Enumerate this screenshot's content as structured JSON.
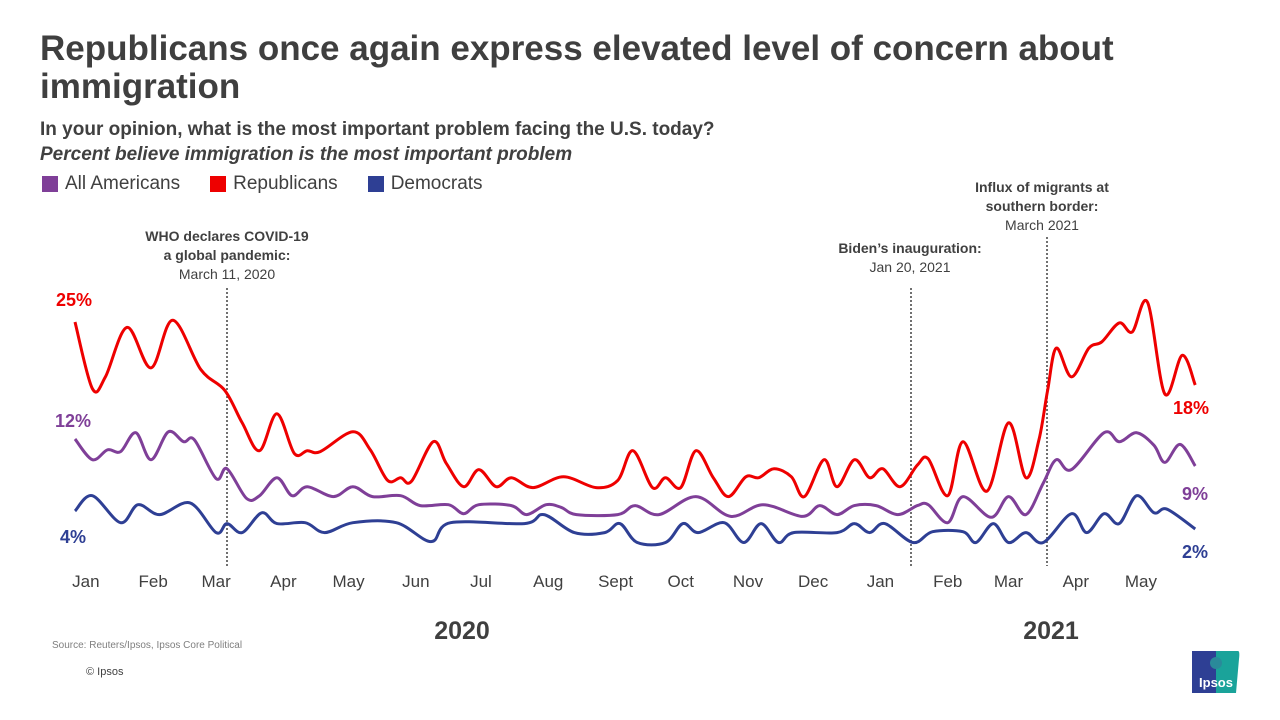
{
  "header": {
    "title": "Republicans once again express elevated level of concern about immigration",
    "subtitle": "In your opinion, what is the most important problem facing the U.S. today?",
    "subtitle2": "Percent believe immigration is the most important problem"
  },
  "legend": [
    {
      "label": "All Americans",
      "color": "#7f3f98"
    },
    {
      "label": "Republicans",
      "color": "#ee0000"
    },
    {
      "label": "Democrats",
      "color": "#2e3f94"
    }
  ],
  "annotations": {
    "covid": {
      "title1": "WHO declares COVID-19",
      "title2": "a global pandemic:",
      "date": "March 11, 2020"
    },
    "biden": {
      "title1": "Biden’s inauguration:",
      "date": "Jan 20, 2021"
    },
    "border": {
      "title1": "Influx of migrants at",
      "title2": "southern border:",
      "date": "March 2021"
    }
  },
  "data_labels": {
    "rep_start": "25%",
    "all_start": "12%",
    "dem_start": "4%",
    "rep_end": "18%",
    "all_end": "9%",
    "dem_end": "2%"
  },
  "footer": {
    "source": "Source: Reuters/Ipsos, Ipsos Core Political",
    "copyright": "© Ipsos",
    "logo_text": "Ipsos"
  },
  "chart_data": {
    "type": "line",
    "title": "Republicans once again express elevated level of concern about immigration",
    "xlabel": "",
    "ylabel": "",
    "x_tick_labels": [
      "Jan",
      "Feb",
      "Mar",
      "Apr",
      "May",
      "Jun",
      "Jul",
      "Aug",
      "Sept",
      "Oct",
      "Nov",
      "Dec",
      "Jan",
      "Feb",
      "Mar",
      "Apr",
      "May"
    ],
    "year_labels": [
      "2020",
      "2021"
    ],
    "xlim": [
      "2020-01-01",
      "2021-05-31"
    ],
    "ylim": [
      0,
      28
    ],
    "grid": false,
    "legend_position": "top-left",
    "series": [
      {
        "name": "Republicans",
        "color": "#ee0000",
        "points": [
          [
            "2020-01-01",
            25
          ],
          [
            "2020-01-09",
            17.6
          ],
          [
            "2020-01-15",
            18.9
          ],
          [
            "2020-01-25",
            24.4
          ],
          [
            "2020-02-05",
            19.9
          ],
          [
            "2020-02-15",
            25.2
          ],
          [
            "2020-02-28",
            19.7
          ],
          [
            "2020-03-10",
            17.4
          ],
          [
            "2020-03-18",
            13.8
          ],
          [
            "2020-03-26",
            10.7
          ],
          [
            "2020-04-03",
            14.8
          ],
          [
            "2020-04-11",
            10.4
          ],
          [
            "2020-04-17",
            10.7
          ],
          [
            "2020-04-23",
            10.6
          ],
          [
            "2020-05-08",
            12.8
          ],
          [
            "2020-05-16",
            10.8
          ],
          [
            "2020-05-24",
            7.4
          ],
          [
            "2020-05-30",
            7.7
          ],
          [
            "2020-06-04",
            7.3
          ],
          [
            "2020-06-14",
            11.7
          ],
          [
            "2020-06-20",
            9.3
          ],
          [
            "2020-06-28",
            6.7
          ],
          [
            "2020-07-05",
            8.6
          ],
          [
            "2020-07-13",
            6.7
          ],
          [
            "2020-07-20",
            7.7
          ],
          [
            "2020-07-30",
            6.6
          ],
          [
            "2020-08-13",
            7.8
          ],
          [
            "2020-08-28",
            6.6
          ],
          [
            "2020-09-07",
            7.4
          ],
          [
            "2020-09-14",
            10.7
          ],
          [
            "2020-09-23",
            6.6
          ],
          [
            "2020-09-29",
            7.7
          ],
          [
            "2020-10-06",
            6.6
          ],
          [
            "2020-10-13",
            10.7
          ],
          [
            "2020-10-21",
            7.7
          ],
          [
            "2020-10-28",
            5.6
          ],
          [
            "2020-11-05",
            7.8
          ],
          [
            "2020-11-11",
            7.7
          ],
          [
            "2020-11-18",
            8.7
          ],
          [
            "2020-11-26",
            7.8
          ],
          [
            "2020-12-02",
            5.6
          ],
          [
            "2020-12-11",
            9.7
          ],
          [
            "2020-12-17",
            6.7
          ],
          [
            "2020-12-25",
            9.7
          ],
          [
            "2021-01-01",
            7.7
          ],
          [
            "2021-01-07",
            8.7
          ],
          [
            "2021-01-15",
            6.7
          ],
          [
            "2021-01-23",
            9.1
          ],
          [
            "2021-01-28",
            9.8
          ],
          [
            "2021-02-06",
            5.7
          ],
          [
            "2021-02-13",
            11.7
          ],
          [
            "2021-02-24",
            6.2
          ],
          [
            "2021-03-06",
            13.8
          ],
          [
            "2021-03-14",
            7.7
          ],
          [
            "2021-03-20",
            11.9
          ],
          [
            "2021-03-24",
            17.4
          ],
          [
            "2021-03-28",
            22.1
          ],
          [
            "2021-04-04",
            18.9
          ],
          [
            "2021-04-12",
            22.1
          ],
          [
            "2021-04-18",
            22.8
          ],
          [
            "2021-04-26",
            24.9
          ],
          [
            "2021-05-02",
            23.9
          ],
          [
            "2021-05-09",
            27.2
          ],
          [
            "2021-05-17",
            17.0
          ],
          [
            "2021-05-25",
            21.3
          ],
          [
            "2021-05-31",
            18
          ]
        ]
      },
      {
        "name": "All Americans",
        "color": "#7f3f98",
        "points": [
          [
            "2020-01-01",
            12
          ],
          [
            "2020-01-09",
            9.7
          ],
          [
            "2020-01-16",
            10.8
          ],
          [
            "2020-01-22",
            10.6
          ],
          [
            "2020-01-29",
            12.7
          ],
          [
            "2020-02-05",
            9.7
          ],
          [
            "2020-02-13",
            12.8
          ],
          [
            "2020-02-20",
            11.7
          ],
          [
            "2020-02-25",
            11.9
          ],
          [
            "2020-03-06",
            7.6
          ],
          [
            "2020-03-11",
            8.7
          ],
          [
            "2020-03-20",
            5.4
          ],
          [
            "2020-03-26",
            5.7
          ],
          [
            "2020-04-03",
            7.7
          ],
          [
            "2020-04-10",
            5.7
          ],
          [
            "2020-04-17",
            6.7
          ],
          [
            "2020-04-29",
            5.6
          ],
          [
            "2020-05-08",
            6.7
          ],
          [
            "2020-05-17",
            5.6
          ],
          [
            "2020-05-30",
            5.7
          ],
          [
            "2020-06-08",
            4.6
          ],
          [
            "2020-06-21",
            4.7
          ],
          [
            "2020-06-28",
            3.7
          ],
          [
            "2020-07-05",
            4.7
          ],
          [
            "2020-07-20",
            4.6
          ],
          [
            "2020-07-27",
            3.6
          ],
          [
            "2020-08-05",
            4.7
          ],
          [
            "2020-08-12",
            4.4
          ],
          [
            "2020-08-19",
            3.6
          ],
          [
            "2020-09-07",
            3.6
          ],
          [
            "2020-09-15",
            4.6
          ],
          [
            "2020-09-26",
            3.6
          ],
          [
            "2020-10-13",
            5.6
          ],
          [
            "2020-10-29",
            3.4
          ],
          [
            "2020-11-13",
            4.7
          ],
          [
            "2020-12-01",
            3.4
          ],
          [
            "2020-12-09",
            4.6
          ],
          [
            "2020-12-17",
            3.6
          ],
          [
            "2020-12-25",
            4.6
          ],
          [
            "2021-01-04",
            4.6
          ],
          [
            "2021-01-14",
            3.6
          ],
          [
            "2021-01-23",
            4.6
          ],
          [
            "2021-01-28",
            4.7
          ],
          [
            "2021-02-06",
            2.7
          ],
          [
            "2021-02-13",
            5.6
          ],
          [
            "2021-02-26",
            3.3
          ],
          [
            "2021-03-06",
            5.6
          ],
          [
            "2021-03-14",
            3.6
          ],
          [
            "2021-03-22",
            7.1
          ],
          [
            "2021-03-28",
            9.7
          ],
          [
            "2021-04-04",
            8.6
          ],
          [
            "2021-04-19",
            12.7
          ],
          [
            "2021-04-26",
            11.7
          ],
          [
            "2021-05-04",
            12.7
          ],
          [
            "2021-05-12",
            11.3
          ],
          [
            "2021-05-17",
            9.4
          ],
          [
            "2021-05-24",
            11.4
          ],
          [
            "2021-05-31",
            9
          ]
        ]
      },
      {
        "name": "Democrats",
        "color": "#2e3f94",
        "points": [
          [
            "2020-01-01",
            4
          ],
          [
            "2020-01-09",
            5.7
          ],
          [
            "2020-01-22",
            2.7
          ],
          [
            "2020-01-30",
            4.7
          ],
          [
            "2020-02-09",
            3.6
          ],
          [
            "2020-02-23",
            4.9
          ],
          [
            "2020-03-06",
            1.6
          ],
          [
            "2020-03-11",
            2.6
          ],
          [
            "2020-03-18",
            1.6
          ],
          [
            "2020-03-27",
            3.8
          ],
          [
            "2020-04-03",
            2.6
          ],
          [
            "2020-04-16",
            2.7
          ],
          [
            "2020-04-25",
            1.6
          ],
          [
            "2020-05-08",
            2.7
          ],
          [
            "2020-05-28",
            2.7
          ],
          [
            "2020-06-13",
            0.6
          ],
          [
            "2020-06-22",
            2.7
          ],
          [
            "2020-07-26",
            2.6
          ],
          [
            "2020-08-04",
            3.6
          ],
          [
            "2020-08-18",
            1.6
          ],
          [
            "2020-09-01",
            1.6
          ],
          [
            "2020-09-08",
            2.6
          ],
          [
            "2020-09-16",
            0.5
          ],
          [
            "2020-09-29",
            0.5
          ],
          [
            "2020-10-07",
            2.6
          ],
          [
            "2020-10-14",
            1.6
          ],
          [
            "2020-10-26",
            2.7
          ],
          [
            "2020-11-04",
            0.5
          ],
          [
            "2020-11-12",
            2.6
          ],
          [
            "2020-11-20",
            0.5
          ],
          [
            "2020-11-27",
            1.6
          ],
          [
            "2020-12-17",
            1.6
          ],
          [
            "2020-12-25",
            2.6
          ],
          [
            "2021-01-01",
            1.6
          ],
          [
            "2021-01-08",
            2.6
          ],
          [
            "2021-01-21",
            0.5
          ],
          [
            "2021-01-30",
            1.7
          ],
          [
            "2021-02-13",
            1.7
          ],
          [
            "2021-02-19",
            0.5
          ],
          [
            "2021-02-27",
            2.6
          ],
          [
            "2021-03-06",
            0.5
          ],
          [
            "2021-03-14",
            1.6
          ],
          [
            "2021-03-22",
            0.5
          ],
          [
            "2021-04-04",
            3.7
          ],
          [
            "2021-04-11",
            1.6
          ],
          [
            "2021-04-19",
            3.7
          ],
          [
            "2021-04-26",
            2.6
          ],
          [
            "2021-05-04",
            5.7
          ],
          [
            "2021-05-12",
            3.8
          ],
          [
            "2021-05-18",
            4.2
          ],
          [
            "2021-05-31",
            2
          ]
        ]
      }
    ]
  }
}
